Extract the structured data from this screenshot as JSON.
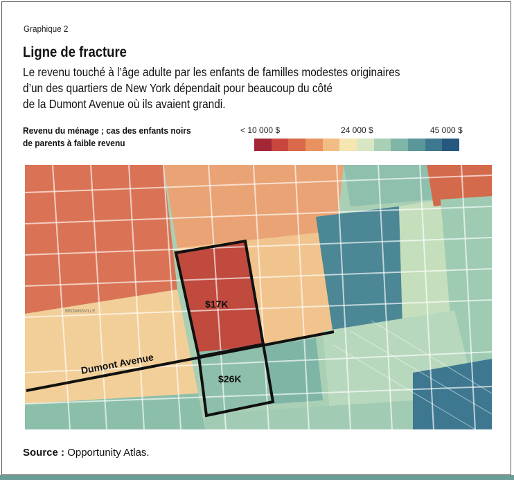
{
  "header": {
    "figure_label": "Graphique 2",
    "title": "Ligne de fracture",
    "subtitle_lines": [
      "Le revenu touché à l’âge adulte par les enfants de familles modestes originaires",
      "d’un des quartiers de New York dépendait pour beaucoup du côté",
      "de la Dumont Avenue où ils avaient grandi."
    ]
  },
  "legend": {
    "title_lines": [
      "Revenu du ménage ; cas des enfants noirs",
      "de parents à faible revenu"
    ],
    "tick_low": "< 10 000 $",
    "tick_mid": "24 000 $",
    "tick_high": "45 000 $",
    "colors": [
      "#a32637",
      "#c9463e",
      "#d9694a",
      "#e9925f",
      "#f2bd84",
      "#f6e6b2",
      "#d8e6c4",
      "#a9cfb5",
      "#7fb5a6",
      "#5b979a",
      "#3e7890",
      "#26587f"
    ]
  },
  "map": {
    "street_label": "Dumont Avenue",
    "north_block_value": "$17K",
    "south_block_value": "$26K",
    "place_labels": [
      "BROWNSVILLE"
    ]
  },
  "source": {
    "label": "Source :",
    "text": "Opportunity Atlas."
  }
}
